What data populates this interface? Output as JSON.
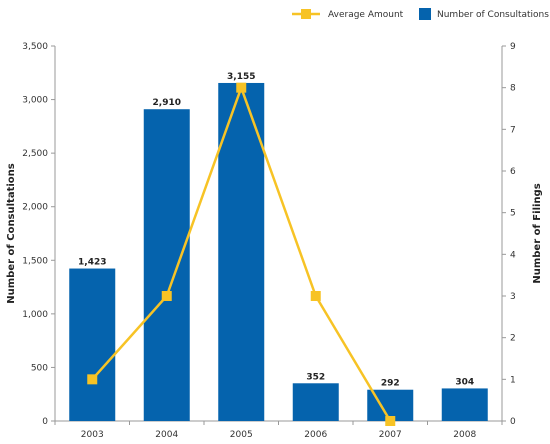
{
  "chart_data": {
    "type": "bar",
    "categories": [
      "2003",
      "2004",
      "2005",
      "2006",
      "2007",
      "2008"
    ],
    "series": [
      {
        "name": "Number of Consultations",
        "type": "bar",
        "axis": "left",
        "values": [
          1423,
          2910,
          3155,
          352,
          292,
          304
        ],
        "labels": [
          "1,423",
          "2,910",
          "3,155",
          "352",
          "292",
          "304"
        ],
        "color": "#0563ad"
      },
      {
        "name": "Average Amount",
        "type": "line",
        "axis": "right",
        "values": [
          1,
          3,
          8,
          3,
          0,
          null
        ],
        "color": "#f7c325"
      }
    ],
    "ylabel": "Number of Consultations",
    "ylabel_right": "Number of Filings",
    "ylim": [
      0,
      3500
    ],
    "ylim_right": [
      0,
      9
    ],
    "yticks": [
      0,
      500,
      1000,
      1500,
      2000,
      2500,
      3000,
      3500
    ],
    "yticks_labels": [
      "0",
      "500",
      "1,000",
      "1,500",
      "2,000",
      "2,500",
      "3,000",
      "3,500"
    ],
    "yticks_right": [
      0,
      1,
      2,
      3,
      4,
      5,
      6,
      7,
      8,
      9
    ],
    "legend": {
      "position": "top-right",
      "order": [
        "Average Amount",
        "Number of Consultations"
      ]
    },
    "grid": false
  }
}
